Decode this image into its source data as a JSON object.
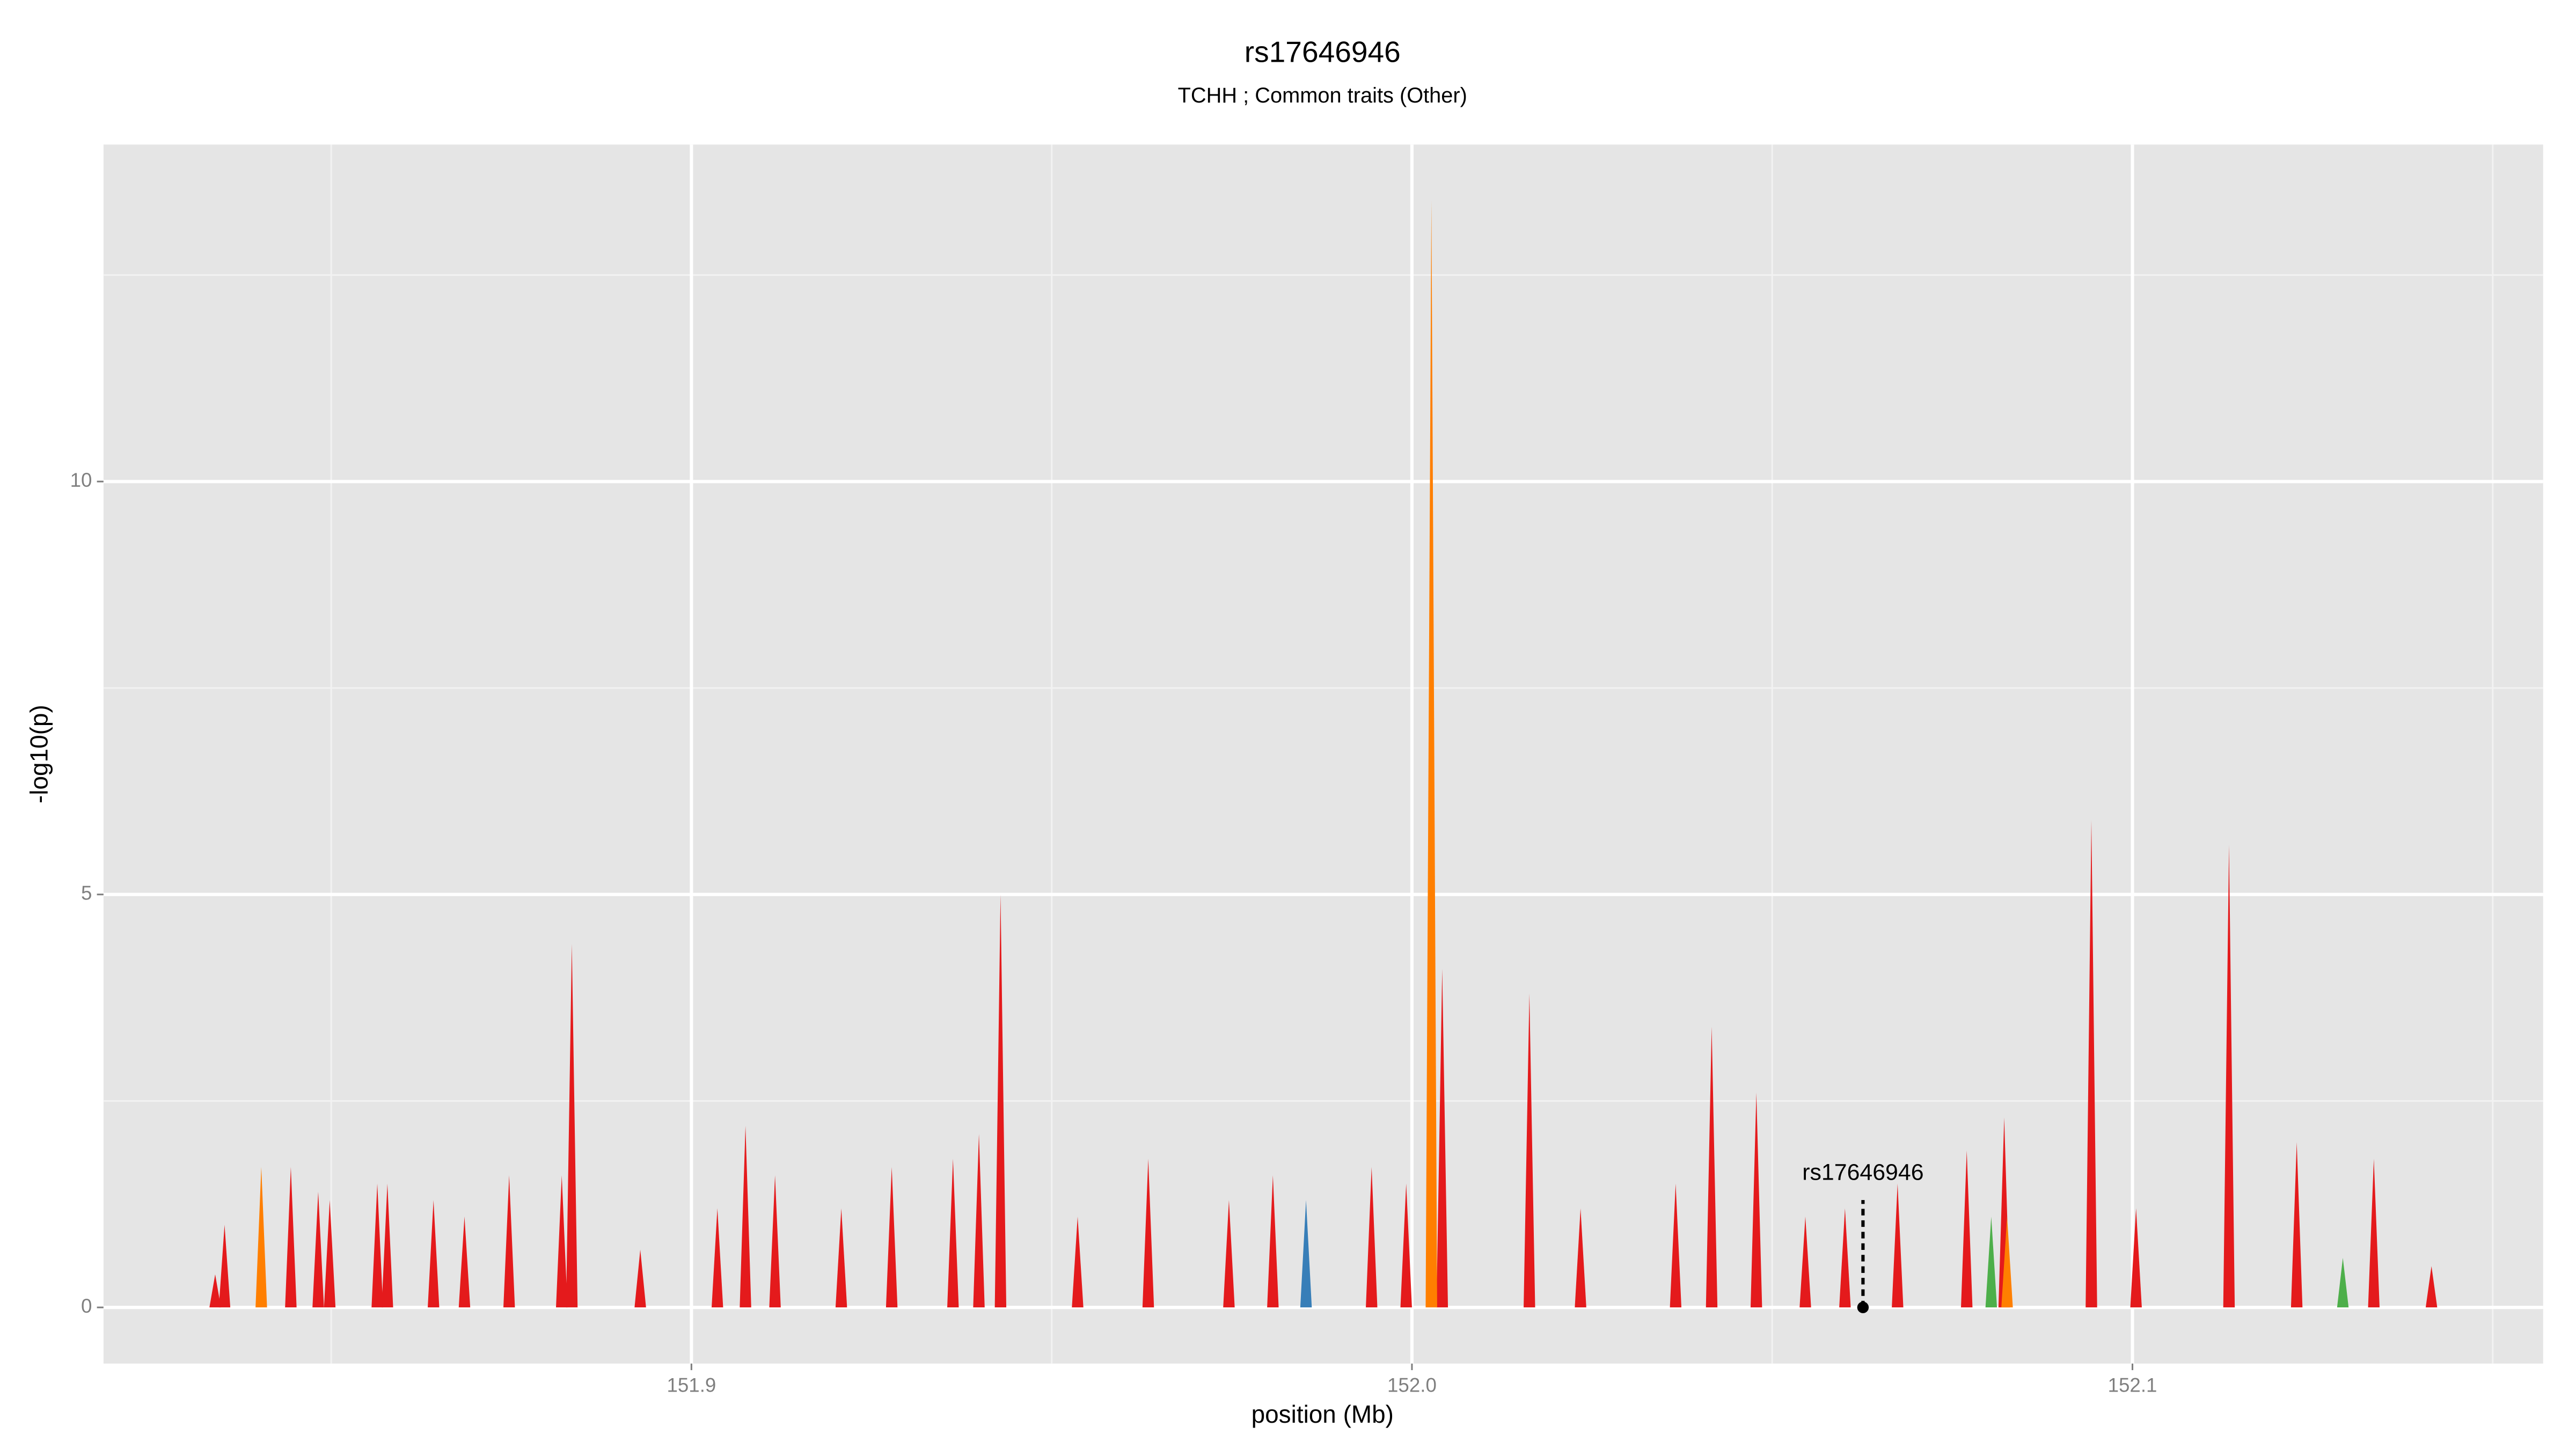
{
  "chart_data": {
    "type": "area",
    "title": "rs17646946",
    "subtitle": "TCHH ; Common traits (Other)",
    "x_label": "position (Mb)",
    "y_label": "-log10(p)",
    "xlim": [
      151.8184,
      152.157
    ],
    "ylim": [
      -0.68,
      14.08
    ],
    "xticks": [
      151.9,
      {
        "value": 152,
        "label": "152.0"
      },
      152.1
    ],
    "yticks": [
      0,
      5,
      10
    ],
    "xminor": [
      151.85,
      151.95,
      152.05,
      152.15
    ],
    "yminor": [
      2.5,
      7.5,
      12.5
    ],
    "grid": true,
    "series": [
      {
        "color": "#e41a1c",
        "x": [
          151.8339,
          151.8352,
          151.8444,
          151.8482,
          151.8498,
          151.8564,
          151.8578,
          151.8642,
          151.8685,
          151.8747,
          151.882,
          151.8834,
          151.8929,
          151.9036,
          151.9075,
          151.9116,
          151.9208,
          151.9278,
          151.9363,
          151.9399,
          151.9429,
          151.9536,
          151.9634,
          151.9746,
          151.9807,
          151.9944,
          151.9992,
          152.0042,
          152.0163,
          152.0234,
          152.0366,
          152.0416,
          152.0478,
          152.0546,
          152.0601,
          152.0674,
          152.077,
          152.0822,
          152.0943,
          152.1005,
          152.1134,
          152.1228,
          152.1335,
          152.1415
        ],
        "values": [
          0.4,
          1.0,
          1.7,
          1.4,
          1.3,
          1.5,
          1.5,
          1.3,
          1.1,
          1.6,
          1.6,
          4.4,
          0.7,
          1.2,
          2.2,
          1.6,
          1.2,
          1.7,
          1.8,
          2.1,
          5.0,
          1.1,
          1.8,
          1.3,
          1.6,
          1.7,
          1.5,
          4.1,
          3.8,
          1.2,
          1.5,
          3.4,
          2.6,
          1.1,
          1.2,
          1.5,
          1.9,
          2.3,
          5.9,
          1.2,
          5.6,
          2.0,
          1.8,
          0.5
        ]
      },
      {
        "color": "#ff7f00",
        "x": [
          151.8403,
          152.0027,
          152.0826
        ],
        "values": [
          1.7,
          13.4,
          1.1
        ]
      },
      {
        "color": "#377eb8",
        "x": [
          151.9853
        ],
        "values": [
          1.3
        ]
      },
      {
        "color": "#4daf4a",
        "x": [
          152.0804,
          152.1292
        ],
        "values": [
          1.1,
          0.6
        ]
      }
    ],
    "annotation": {
      "text": "rs17646946",
      "x": 152.0626,
      "y": 0,
      "line_top": 1.3
    }
  }
}
